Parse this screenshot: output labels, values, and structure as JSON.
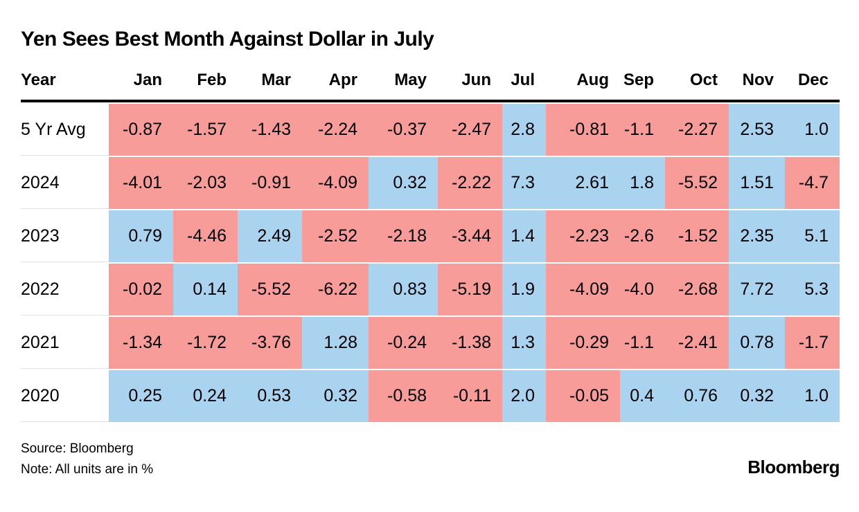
{
  "title": "Yen Sees Best Month Against Dollar in July",
  "table": {
    "header": [
      "Year",
      "Jan",
      "Feb",
      "Mar",
      "Apr",
      "May",
      "Jun",
      "Jul",
      "Aug",
      "Sep",
      "Oct",
      "Nov",
      "Dec"
    ],
    "rows": [
      {
        "label": "5 Yr Avg",
        "values": [
          "-0.87",
          "-1.57",
          "-1.43",
          "-2.24",
          "-0.37",
          "-2.47",
          "2.8",
          "-0.81",
          "-1.1",
          "-2.27",
          "2.53",
          "1.0"
        ]
      },
      {
        "label": "2024",
        "values": [
          "-4.01",
          "-2.03",
          "-0.91",
          "-4.09",
          "0.32",
          "-2.22",
          "7.3",
          "2.61",
          "1.8",
          "-5.52",
          "1.51",
          "-4.7"
        ]
      },
      {
        "label": "2023",
        "values": [
          "0.79",
          "-4.46",
          "2.49",
          "-2.52",
          "-2.18",
          "-3.44",
          "1.4",
          "-2.23",
          "-2.6",
          "-1.52",
          "2.35",
          "5.1"
        ]
      },
      {
        "label": "2022",
        "values": [
          "-0.02",
          "0.14",
          "-5.52",
          "-6.22",
          "0.83",
          "-5.19",
          "1.9",
          "-4.09",
          "-4.0",
          "-2.68",
          "7.72",
          "5.3"
        ]
      },
      {
        "label": "2021",
        "values": [
          "-1.34",
          "-1.72",
          "-3.76",
          "1.28",
          "-0.24",
          "-1.38",
          "1.3",
          "-0.29",
          "-1.1",
          "-2.41",
          "0.78",
          "-1.7"
        ]
      },
      {
        "label": "2020",
        "values": [
          "0.25",
          "0.24",
          "0.53",
          "0.32",
          "-0.58",
          "-0.11",
          "2.0",
          "-0.05",
          "0.4",
          "0.76",
          "0.32",
          "1.0"
        ]
      }
    ]
  },
  "colors": {
    "negative_cell": "#F89C99",
    "positive_cell": "#AAD3F0"
  },
  "footer": {
    "source": "Source: Bloomberg",
    "note": "Note: All units are in %",
    "logo": "Bloomberg"
  },
  "chart_data": {
    "type": "heatmap",
    "title": "Yen Sees Best Month Against Dollar in July",
    "columns": [
      "Jan",
      "Feb",
      "Mar",
      "Apr",
      "May",
      "Jun",
      "Jul",
      "Aug",
      "Sep",
      "Oct",
      "Nov",
      "Dec"
    ],
    "rows": [
      "5 Yr Avg",
      "2024",
      "2023",
      "2022",
      "2021",
      "2020"
    ],
    "values": [
      [
        -0.87,
        -1.57,
        -1.43,
        -2.24,
        -0.37,
        -2.47,
        2.8,
        -0.81,
        -1.1,
        -2.27,
        2.53,
        1.0
      ],
      [
        -4.01,
        -2.03,
        -0.91,
        -4.09,
        0.32,
        -2.22,
        7.3,
        2.61,
        1.8,
        -5.52,
        1.51,
        -4.7
      ],
      [
        0.79,
        -4.46,
        2.49,
        -2.52,
        -2.18,
        -3.44,
        1.4,
        -2.23,
        -2.6,
        -1.52,
        2.35,
        5.1
      ],
      [
        -0.02,
        0.14,
        -5.52,
        -6.22,
        0.83,
        -5.19,
        1.9,
        -4.09,
        -4.0,
        -2.68,
        7.72,
        5.3
      ],
      [
        -1.34,
        -1.72,
        -3.76,
        1.28,
        -0.24,
        -1.38,
        1.3,
        -0.29,
        -1.1,
        -2.41,
        0.78,
        -1.7
      ],
      [
        0.25,
        0.24,
        0.53,
        0.32,
        -0.58,
        -0.11,
        2.0,
        -0.05,
        0.4,
        0.76,
        0.32,
        1.0
      ]
    ],
    "units": "%",
    "color_rule": {
      "negative": "#F89C99",
      "positive_or_zero": "#AAD3F0"
    },
    "legend_position": "none",
    "source": "Bloomberg"
  }
}
